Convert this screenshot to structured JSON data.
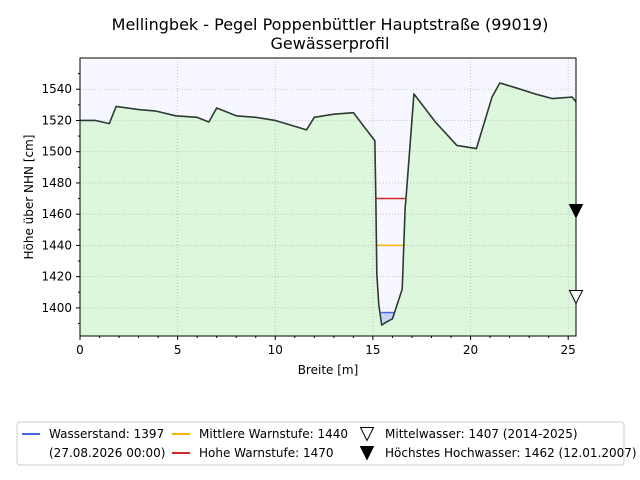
{
  "chart_data": {
    "type": "area",
    "title": "Mellingbek - Pegel Poppenbüttler Hauptstraße (99019)",
    "subtitle": "Gewässerprofil",
    "xlabel": "Breite [m]",
    "ylabel": "Höhe über NHN [cm]",
    "xlim": [
      0,
      25.4
    ],
    "ylim": [
      1382,
      1560
    ],
    "x_ticks": [
      0,
      5,
      10,
      15,
      20,
      25
    ],
    "y_ticks": [
      1400,
      1420,
      1440,
      1460,
      1480,
      1500,
      1520,
      1540
    ],
    "grid": true,
    "legend_position": "below",
    "profile": {
      "x": [
        0,
        0.8,
        1.5,
        1.85,
        3.0,
        3.9,
        4.9,
        6.0,
        6.6,
        7.0,
        8.0,
        9.0,
        10.0,
        11.6,
        12.0,
        13.0,
        14.0,
        15.1,
        15.15,
        15.2,
        15.3,
        15.45,
        15.7,
        16.0,
        16.5,
        16.65,
        16.7,
        17.1,
        18.2,
        19.3,
        20.3,
        21.1,
        21.5,
        22.3,
        23.3,
        24.2,
        25.2,
        25.4
      ],
      "y": [
        1520,
        1520,
        1518,
        1529,
        1527,
        1526,
        1523,
        1522,
        1519,
        1528,
        1523,
        1522,
        1520,
        1514,
        1522,
        1524,
        1525,
        1507,
        1470,
        1422,
        1402,
        1389,
        1391,
        1393,
        1412,
        1464,
        1471,
        1537,
        1519,
        1504,
        1502,
        1535,
        1544,
        1541,
        1537,
        1534,
        1535,
        1532
      ]
    },
    "water_level": {
      "value": 1397,
      "x_range": [
        15.4,
        16.1
      ]
    },
    "warn_levels": [
      {
        "name": "Mittlere Warnstufe: 1440",
        "value": 1440,
        "x_range": [
          15.15,
          16.65
        ],
        "color": "#f5b400"
      },
      {
        "name": "Hohe Warnstufe: 1470",
        "value": 1470,
        "x_range": [
          15.15,
          16.65
        ],
        "color": "#d62728"
      }
    ],
    "markers": [
      {
        "name": "Mittelwasser: 1407 (2014-2025)",
        "value": 1407,
        "x": 25.4,
        "style": "open-triangle-down"
      },
      {
        "name": "Höchstes Hochwasser: 1462 (12.01.2007)",
        "value": 1462,
        "x": 25.4,
        "style": "filled-triangle-down"
      }
    ],
    "legend": [
      {
        "label": "Wasserstand: 1397",
        "sublabel": "(27.08.2026 00:00)",
        "color": "#4169e1",
        "style": "line"
      },
      {
        "label": "Mittlere Warnstufe: 1440",
        "color": "#f5b400",
        "style": "line"
      },
      {
        "label": "Hohe Warnstufe: 1470",
        "color": "#d62728",
        "style": "line"
      },
      {
        "label": "Mittelwasser: 1407 (2014-2025)",
        "color": "#000000",
        "style": "open-triangle-down"
      },
      {
        "label": "Höchstes Hochwasser: 1462 (12.01.2007)",
        "color": "#000000",
        "style": "filled-triangle-down"
      }
    ],
    "colors": {
      "ground_fill": "#dcf7dc",
      "sky_fill": "#f7f7ff",
      "profile_line": "#2f3a35",
      "water_fill": "#c7d3f5",
      "water_line": "#4169e1",
      "grid": "#bbbbbb"
    }
  }
}
